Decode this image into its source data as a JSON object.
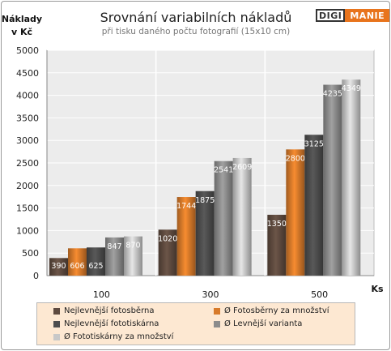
{
  "chart_data": {
    "type": "bar",
    "title": "Srovnání variabilních nákladů",
    "subtitle": "při tisku daného počtu fotografií (15x10 cm)",
    "ylabel_line1": "Náklady",
    "ylabel_line2": "v Kč",
    "xlabel": "Ks",
    "ylim": [
      0,
      5000
    ],
    "yticks": [
      0,
      500,
      1000,
      1500,
      2000,
      2500,
      3000,
      3500,
      4000,
      4500,
      5000
    ],
    "grid": true,
    "categories": [
      "100",
      "300",
      "500"
    ],
    "series": [
      {
        "name": "Nejlevnější fotosběrna",
        "values": [
          390,
          1020,
          1350
        ],
        "color": "#5e4a3f"
      },
      {
        "name": "Ø Fotosběrny za množství",
        "values": [
          606,
          1744,
          2800
        ],
        "color": "#d77a2a"
      },
      {
        "name": "Nejlevnější fototiskárna",
        "values": [
          625,
          1875,
          3125
        ],
        "color": "#4d4d4d"
      },
      {
        "name": "Ø Levnější varianta",
        "values": [
          847,
          2541,
          4235
        ],
        "color": "#8c8c8c"
      },
      {
        "name": "Ø Fototiskárny za množství",
        "values": [
          870,
          2609,
          4349
        ],
        "color": "#c8c8c8"
      }
    ],
    "legend_position": "bottom"
  },
  "logo": {
    "part1": "DIGI",
    "part2": "MANIE"
  }
}
